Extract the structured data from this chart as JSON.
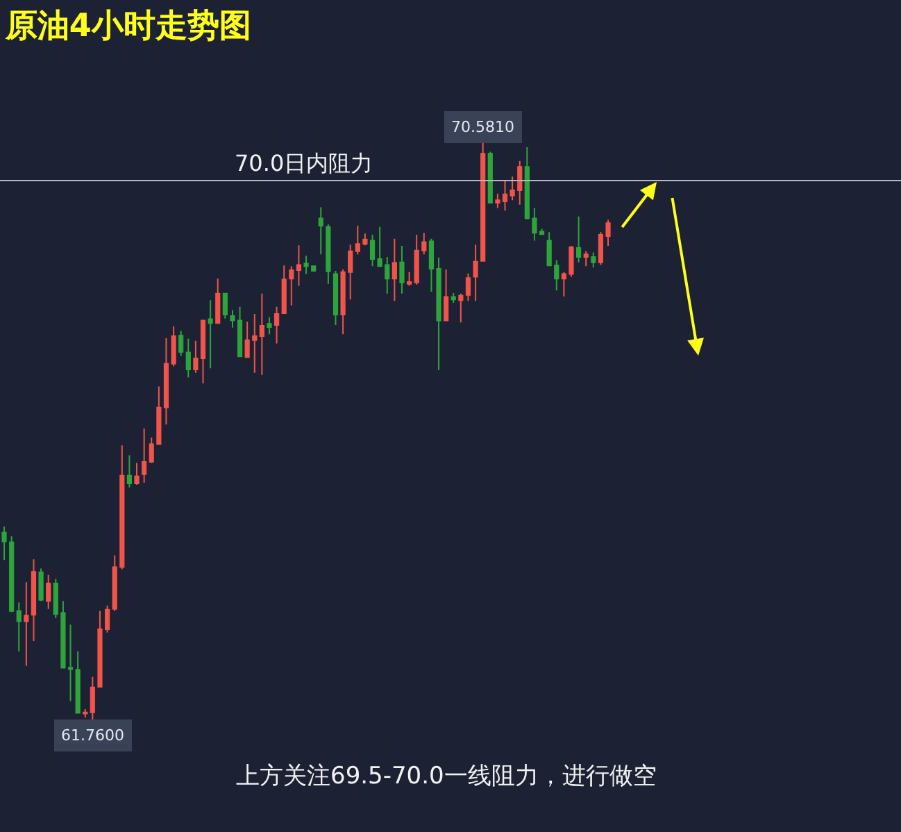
{
  "chart_data": {
    "type": "candlestick",
    "title": "原油4小时走势图",
    "categories": [
      null,
      null,
      null,
      null,
      null,
      null,
      null,
      null,
      null,
      null,
      null,
      null,
      null,
      null,
      null,
      null,
      null,
      null,
      null,
      null,
      null,
      null,
      null,
      null,
      null,
      null,
      null,
      null,
      null,
      null,
      null,
      null,
      null,
      null,
      null,
      null,
      null,
      null,
      null,
      null,
      null,
      null,
      null,
      null,
      null,
      null,
      null,
      null,
      null,
      null,
      null,
      null,
      null,
      null,
      null,
      null,
      null,
      null,
      null,
      null,
      null,
      null,
      null,
      null,
      null,
      null,
      null,
      null,
      null,
      null,
      null,
      null,
      null,
      null,
      null,
      null,
      null,
      null,
      null,
      null,
      null,
      null,
      null
    ],
    "ohlc": [
      [
        64.62,
        64.71,
        64.2,
        64.48
      ],
      [
        64.47,
        64.56,
        63.4,
        63.42
      ],
      [
        63.42,
        63.55,
        62.8,
        63.26
      ],
      [
        63.26,
        63.86,
        62.58,
        63.35
      ],
      [
        63.36,
        64.21,
        62.96,
        64.02
      ],
      [
        64.01,
        64.07,
        63.57,
        63.59
      ],
      [
        63.57,
        63.97,
        63.45,
        63.84
      ],
      [
        63.84,
        63.91,
        63.31,
        63.37
      ],
      [
        63.39,
        63.57,
        62.54,
        62.55
      ],
      [
        62.55,
        63.21,
        62.04,
        62.53
      ],
      [
        62.52,
        62.8,
        61.85,
        61.86
      ],
      [
        61.85,
        61.92,
        61.79,
        61.87
      ],
      [
        61.87,
        62.41,
        61.76,
        62.25
      ],
      [
        62.26,
        63.42,
        62.25,
        63.14
      ],
      [
        63.14,
        63.5,
        63.09,
        63.44
      ],
      [
        63.45,
        64.27,
        63.42,
        64.09
      ],
      [
        64.09,
        65.95,
        64.06,
        65.49
      ],
      [
        65.49,
        65.8,
        65.31,
        65.37
      ],
      [
        65.37,
        65.68,
        65.35,
        65.48
      ],
      [
        65.51,
        66.21,
        65.38,
        65.7
      ],
      [
        65.7,
        66.07,
        65.68,
        65.97
      ],
      [
        65.97,
        66.85,
        65.96,
        66.53
      ],
      [
        66.53,
        67.59,
        66.27,
        67.2
      ],
      [
        67.2,
        67.77,
        67.16,
        67.62
      ],
      [
        67.63,
        67.7,
        67.32,
        67.38
      ],
      [
        67.37,
        67.58,
        66.99,
        67.11
      ],
      [
        67.11,
        67.55,
        67.06,
        67.28
      ],
      [
        67.28,
        67.86,
        66.9,
        67.86
      ],
      [
        67.88,
        68.17,
        67.13,
        67.82
      ],
      [
        67.82,
        68.5,
        67.81,
        68.27
      ],
      [
        68.27,
        68.28,
        67.89,
        67.95
      ],
      [
        67.93,
        68.02,
        67.75,
        67.86
      ],
      [
        67.86,
        68.07,
        67.3,
        67.31
      ],
      [
        67.3,
        67.84,
        67.29,
        67.56
      ],
      [
        67.56,
        67.96,
        67.06,
        67.62
      ],
      [
        67.62,
        68.27,
        67.03,
        67.78
      ],
      [
        67.81,
        67.91,
        67.65,
        67.76
      ],
      [
        67.79,
        68.07,
        67.51,
        67.96
      ],
      [
        67.97,
        68.7,
        67.96,
        68.49
      ],
      [
        68.5,
        68.69,
        68.09,
        68.63
      ],
      [
        68.63,
        69.01,
        68.39,
        68.71
      ],
      [
        68.73,
        68.85,
        68.57,
        68.69
      ],
      [
        68.69,
        68.7,
        68.61,
        68.62
      ],
      [
        69.42,
        69.59,
        68.87,
        69.31
      ],
      [
        69.29,
        69.33,
        68.42,
        68.61
      ],
      [
        68.57,
        68.62,
        67.79,
        67.95
      ],
      [
        67.95,
        68.64,
        67.65,
        68.6
      ],
      [
        68.6,
        69.02,
        68.18,
        68.92
      ],
      [
        68.92,
        69.31,
        68.87,
        69.03
      ],
      [
        69.03,
        69.19,
        69.01,
        69.1
      ],
      [
        69.08,
        69.17,
        68.69,
        68.8
      ],
      [
        68.8,
        69.29,
        68.68,
        68.69
      ],
      [
        68.71,
        68.83,
        68.27,
        68.5
      ],
      [
        68.5,
        69.11,
        68.16,
        68.74
      ],
      [
        68.75,
        69.0,
        68.27,
        68.44
      ],
      [
        68.42,
        68.6,
        68.39,
        68.45
      ],
      [
        68.44,
        69.17,
        68.41,
        68.93
      ],
      [
        68.93,
        69.2,
        68.87,
        69.06
      ],
      [
        69.07,
        69.11,
        68.3,
        68.65
      ],
      [
        68.65,
        68.82,
        67.1,
        67.86
      ],
      [
        67.86,
        68.64,
        67.85,
        68.22
      ],
      [
        68.22,
        68.28,
        68.13,
        68.18
      ],
      [
        68.17,
        68.27,
        67.83,
        68.24
      ],
      [
        68.25,
        68.58,
        68.16,
        68.51
      ],
      [
        68.53,
        69.02,
        68.16,
        68.76
      ],
      [
        68.77,
        70.581,
        68.76,
        70.41
      ],
      [
        70.41,
        70.44,
        69.65,
        69.66
      ],
      [
        69.66,
        69.8,
        69.58,
        69.7
      ],
      [
        69.68,
        69.99,
        69.54,
        69.79
      ],
      [
        69.77,
        70.06,
        69.7,
        69.85
      ],
      [
        69.85,
        70.3,
        69.63,
        70.21
      ],
      [
        70.21,
        70.51,
        69.41,
        69.42
      ],
      [
        69.42,
        69.58,
        69.08,
        69.2
      ],
      [
        69.22,
        69.26,
        69.17,
        69.18
      ],
      [
        69.08,
        69.21,
        68.69,
        68.7
      ],
      [
        68.7,
        68.78,
        68.32,
        68.5
      ],
      [
        68.5,
        68.6,
        68.23,
        68.57
      ],
      [
        68.57,
        69.0,
        68.53,
        68.98
      ],
      [
        68.97,
        69.45,
        68.75,
        68.83
      ],
      [
        68.83,
        68.92,
        68.69,
        68.87
      ],
      [
        68.83,
        68.9,
        68.67,
        68.75
      ],
      [
        68.75,
        69.21,
        68.71,
        69.17
      ],
      [
        69.15,
        69.4,
        69.0,
        69.35
      ]
    ],
    "colors": [
      "#2ea53c",
      "#2ea53c",
      "#2ea53c",
      "#f0544a",
      "#f0544a",
      "#2ea53c",
      "#f0544a",
      "#2ea53c",
      "#2ea53c",
      "#2ea53c",
      "#2ea53c",
      "#f0544a",
      "#f0544a",
      "#f0544a",
      "#f0544a",
      "#f0544a",
      "#f0544a",
      "#2ea53c",
      "#f0544a",
      "#f0544a",
      "#f0544a",
      "#f0544a",
      "#f0544a",
      "#f0544a",
      "#2ea53c",
      "#2ea53c",
      "#f0544a",
      "#f0544a",
      "#2ea53c",
      "#f0544a",
      "#2ea53c",
      "#2ea53c",
      "#2ea53c",
      "#f0544a",
      "#f0544a",
      "#f0544a",
      "#2ea53c",
      "#f0544a",
      "#f0544a",
      "#f0544a",
      "#f0544a",
      "#2ea53c",
      "#2ea53c",
      "#2ea53c",
      "#2ea53c",
      "#2ea53c",
      "#f0544a",
      "#f0544a",
      "#f0544a",
      "#f0544a",
      "#2ea53c",
      "#2ea53c",
      "#2ea53c",
      "#f0544a",
      "#2ea53c",
      "#f0544a",
      "#f0544a",
      "#f0544a",
      "#2ea53c",
      "#2ea53c",
      "#f0544a",
      "#2ea53c",
      "#f0544a",
      "#f0544a",
      "#f0544a",
      "#f0544a",
      "#2ea53c",
      "#f0544a",
      "#f0544a",
      "#f0544a",
      "#f0544a",
      "#2ea53c",
      "#2ea53c",
      "#2ea53c",
      "#2ea53c",
      "#2ea53c",
      "#f0544a",
      "#f0544a",
      "#2ea53c",
      "#f0544a",
      "#2ea53c",
      "#f0544a",
      "#f0544a"
    ],
    "ref_lines": [
      {
        "axis": "y",
        "value": 70.0,
        "label": "70.0日内阻力",
        "color": "#b4b8c0"
      }
    ],
    "annotations": [
      {
        "text": "70.5810",
        "y": 70.581
      },
      {
        "text": "61.7600",
        "y": 61.76
      },
      "上方关注69.5-70.0一线阻力，进行做空"
    ]
  }
}
